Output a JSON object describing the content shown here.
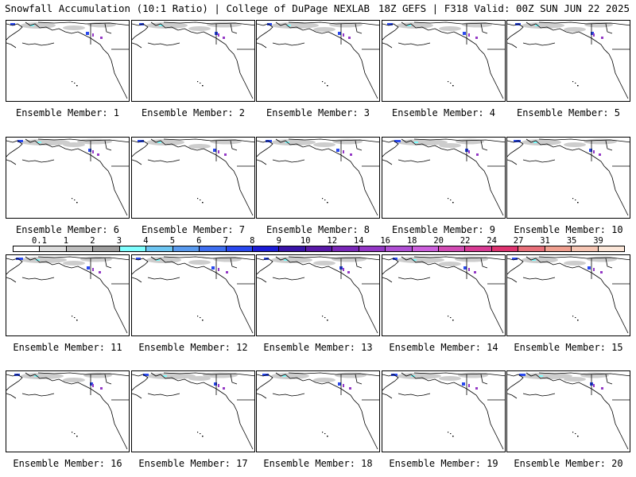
{
  "header": {
    "title_left": "Snowfall Accumulation (10:1 Ratio) | College of DuPage NEXLAB",
    "title_right": "18Z GEFS | F318 Valid: 00Z SUN JUN 22 2025"
  },
  "panels": [
    {
      "label": "Ensemble Member: 1"
    },
    {
      "label": "Ensemble Member: 2"
    },
    {
      "label": "Ensemble Member: 3"
    },
    {
      "label": "Ensemble Member: 4"
    },
    {
      "label": "Ensemble Member: 5"
    },
    {
      "label": "Ensemble Member: 6"
    },
    {
      "label": "Ensemble Member: 7"
    },
    {
      "label": "Ensemble Member: 8"
    },
    {
      "label": "Ensemble Member: 9"
    },
    {
      "label": "Ensemble Member: 10"
    },
    {
      "label": "Ensemble Member: 11"
    },
    {
      "label": "Ensemble Member: 12"
    },
    {
      "label": "Ensemble Member: 13"
    },
    {
      "label": "Ensemble Member: 14"
    },
    {
      "label": "Ensemble Member: 15"
    },
    {
      "label": "Ensemble Member: 16"
    },
    {
      "label": "Ensemble Member: 17"
    },
    {
      "label": "Ensemble Member: 18"
    },
    {
      "label": "Ensemble Member: 19"
    },
    {
      "label": "Ensemble Member: 20"
    }
  ],
  "legend": {
    "ticks": [
      "0.1",
      "1",
      "2",
      "3",
      "4",
      "5",
      "6",
      "7",
      "8",
      "9",
      "10",
      "12",
      "14",
      "16",
      "18",
      "20",
      "22",
      "24",
      "27",
      "31",
      "35",
      "39"
    ],
    "colors": [
      "#ffffff",
      "#dcdcdc",
      "#bdbdbd",
      "#9e9e9e",
      "#80ffff",
      "#6ec6f2",
      "#5a9bef",
      "#3f6ff0",
      "#2a49ef",
      "#1c1cd6",
      "#3a14a8",
      "#5a1aa8",
      "#7a28b8",
      "#9438c6",
      "#b050d4",
      "#cc60dc",
      "#d24cb4",
      "#d83c94",
      "#de3470",
      "#e8707a",
      "#f0a090",
      "#f6c6b4",
      "#fbe6d8"
    ]
  },
  "colors": {
    "coast": "#000000",
    "snow_light": "#c8c8c8",
    "snow_blue": "#2a49ef",
    "snow_purple": "#9438c6",
    "snow_cyan": "#80ffff"
  }
}
